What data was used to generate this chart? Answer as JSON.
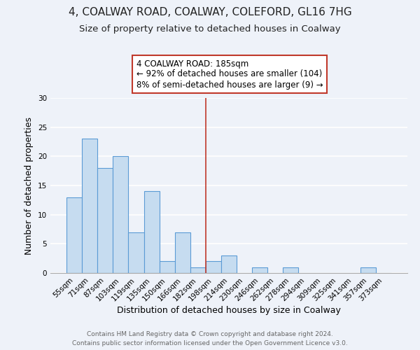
{
  "title": "4, COALWAY ROAD, COALWAY, COLEFORD, GL16 7HG",
  "subtitle": "Size of property relative to detached houses in Coalway",
  "xlabel": "Distribution of detached houses by size in Coalway",
  "ylabel": "Number of detached properties",
  "bin_labels": [
    "55sqm",
    "71sqm",
    "87sqm",
    "103sqm",
    "119sqm",
    "135sqm",
    "150sqm",
    "166sqm",
    "182sqm",
    "198sqm",
    "214sqm",
    "230sqm",
    "246sqm",
    "262sqm",
    "278sqm",
    "294sqm",
    "309sqm",
    "325sqm",
    "341sqm",
    "357sqm",
    "373sqm"
  ],
  "bar_heights": [
    13,
    23,
    18,
    20,
    7,
    14,
    2,
    7,
    1,
    2,
    3,
    0,
    1,
    0,
    1,
    0,
    0,
    0,
    0,
    1,
    0
  ],
  "bar_color": "#c6dcf0",
  "bar_edge_color": "#5b9bd5",
  "annotation_line_bin_index": 8,
  "annotation_box_text": "4 COALWAY ROAD: 185sqm\n← 92% of detached houses are smaller (104)\n8% of semi-detached houses are larger (9) →",
  "annotation_box_facecolor": "#ffffff",
  "annotation_box_edgecolor": "#c0392b",
  "ylim": [
    0,
    30
  ],
  "yticks": [
    0,
    5,
    10,
    15,
    20,
    25,
    30
  ],
  "footer_line1": "Contains HM Land Registry data © Crown copyright and database right 2024.",
  "footer_line2": "Contains public sector information licensed under the Open Government Licence v3.0.",
  "background_color": "#eef2f9",
  "grid_color": "#ffffff",
  "title_fontsize": 11,
  "subtitle_fontsize": 9.5,
  "axis_label_fontsize": 9,
  "tick_fontsize": 7.5,
  "annotation_fontsize": 8.5,
  "footer_fontsize": 6.5
}
